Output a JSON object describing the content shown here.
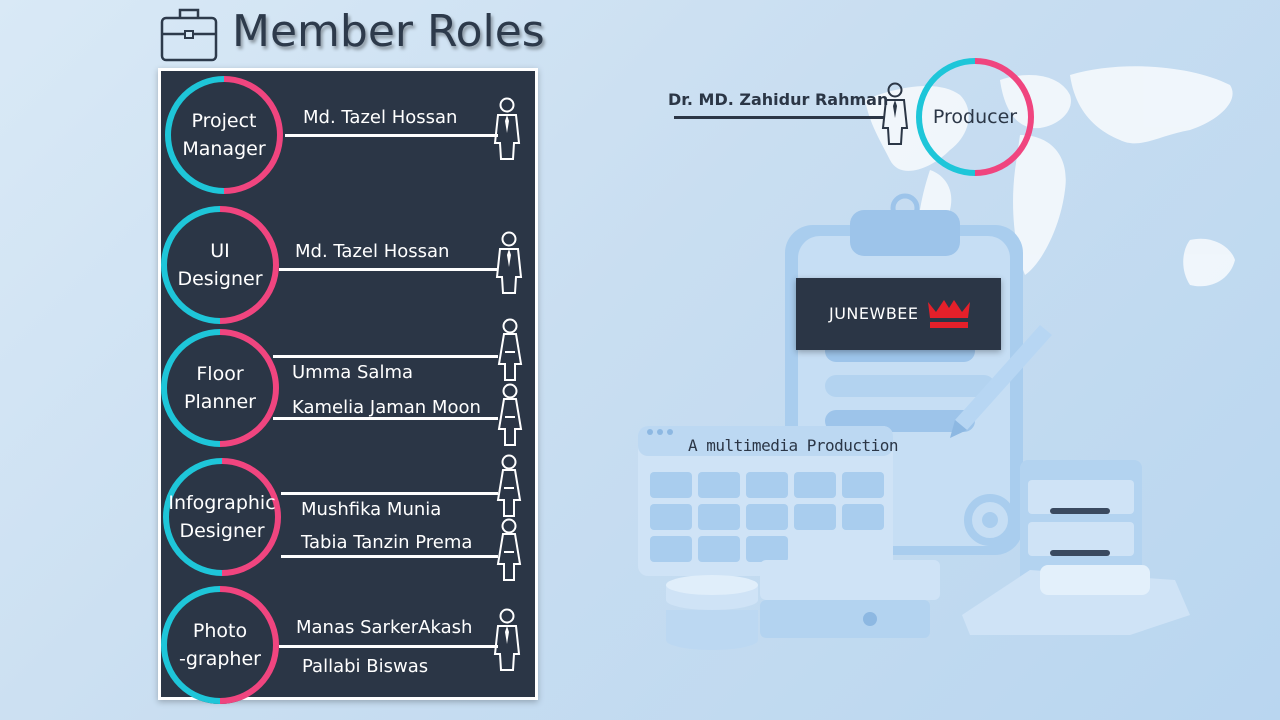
{
  "slide": {
    "title": "Member Roles",
    "title_icon": "briefcase-icon"
  },
  "roles": [
    {
      "label": "Project\nManager",
      "members": [
        "Md. Tazel Hossan"
      ]
    },
    {
      "label": "UI\nDesigner",
      "members": [
        "Md. Tazel Hossan"
      ]
    },
    {
      "label": "Floor\nPlanner",
      "members": [
        "Umma Salma",
        "Kamelia Jaman Moon"
      ]
    },
    {
      "label": "Infographic\nDesigner",
      "members": [
        "Mushfika Munia",
        "Tabia Tanzin Prema"
      ]
    },
    {
      "label": "Photo\n-grapher",
      "members": [
        "Manas SarkerAkash",
        "Pallabi Biswas"
      ]
    }
  ],
  "producer": {
    "name": "Dr. MD. Zahidur Rahman",
    "role": "Producer"
  },
  "brand": {
    "name": "JUNEWBEE",
    "tagline": "A multimedia Production"
  },
  "colors": {
    "panel": "#2b3646",
    "ring_cyan": "#1ec6d9",
    "ring_pink": "#f0457f",
    "brand_red": "#e5202a"
  }
}
